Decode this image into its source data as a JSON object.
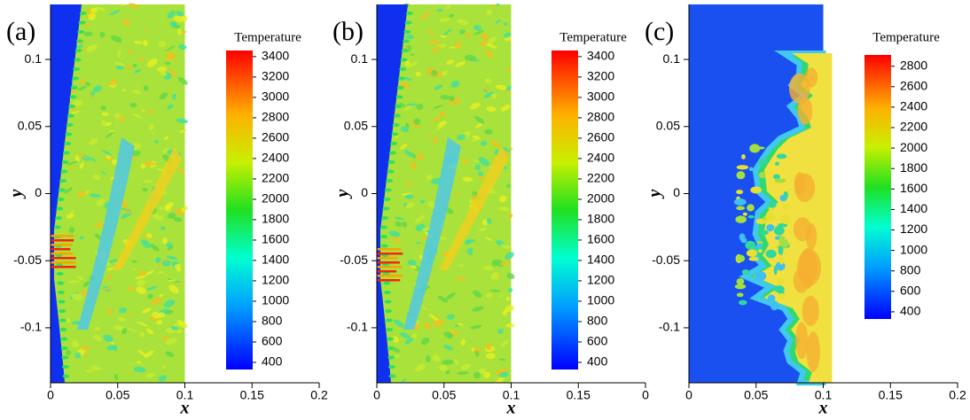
{
  "chart_data": [
    {
      "type": "contour",
      "label": "(a)",
      "xlabel": "x",
      "ylabel": "y",
      "xlim": [
        0,
        0.2
      ],
      "ylim": [
        -0.141,
        0.141
      ],
      "xticks": [
        0,
        0.05,
        0.1,
        0.15,
        0.2
      ],
      "yticks": [
        -0.1,
        -0.05,
        0,
        0.05,
        0.1
      ],
      "colorbar": {
        "title": "Temperature",
        "lim": [
          330,
          3460
        ],
        "ticks": [
          400,
          600,
          800,
          1000,
          1200,
          1400,
          1600,
          1800,
          2000,
          2200,
          2400,
          2600,
          2800,
          3000,
          3200,
          3400
        ]
      }
    },
    {
      "type": "contour",
      "label": "(b)",
      "xlabel": "x",
      "ylabel": "y",
      "xlim": [
        0,
        0.2
      ],
      "ylim": [
        -0.141,
        0.141
      ],
      "xticks": [
        0,
        0.05,
        0.1,
        0.15,
        {
          "value": 0.2,
          "label": "0"
        }
      ],
      "yticks": [
        -0.1,
        -0.05,
        0,
        0.05,
        0.1
      ],
      "colorbar": {
        "title": "Temperature",
        "lim": [
          330,
          3460
        ],
        "ticks": [
          400,
          600,
          800,
          1000,
          1200,
          1400,
          1600,
          1800,
          2000,
          2200,
          2400,
          2600,
          2800,
          3000,
          3200,
          3400
        ]
      }
    },
    {
      "type": "contour",
      "label": "(c)",
      "xlabel": "x",
      "ylabel": "y",
      "xlim": [
        0,
        0.2
      ],
      "ylim": [
        -0.141,
        0.141
      ],
      "xticks": [
        0,
        0.05,
        0.1,
        0.15,
        0.2
      ],
      "yticks": [
        -0.1,
        -0.05,
        0,
        0.05,
        0.1
      ],
      "colorbar": {
        "title": "Temperature",
        "lim": [
          330,
          2910
        ],
        "ticks": [
          400,
          600,
          800,
          1000,
          1200,
          1400,
          1600,
          1800,
          2000,
          2200,
          2400,
          2600,
          2800
        ]
      }
    }
  ]
}
